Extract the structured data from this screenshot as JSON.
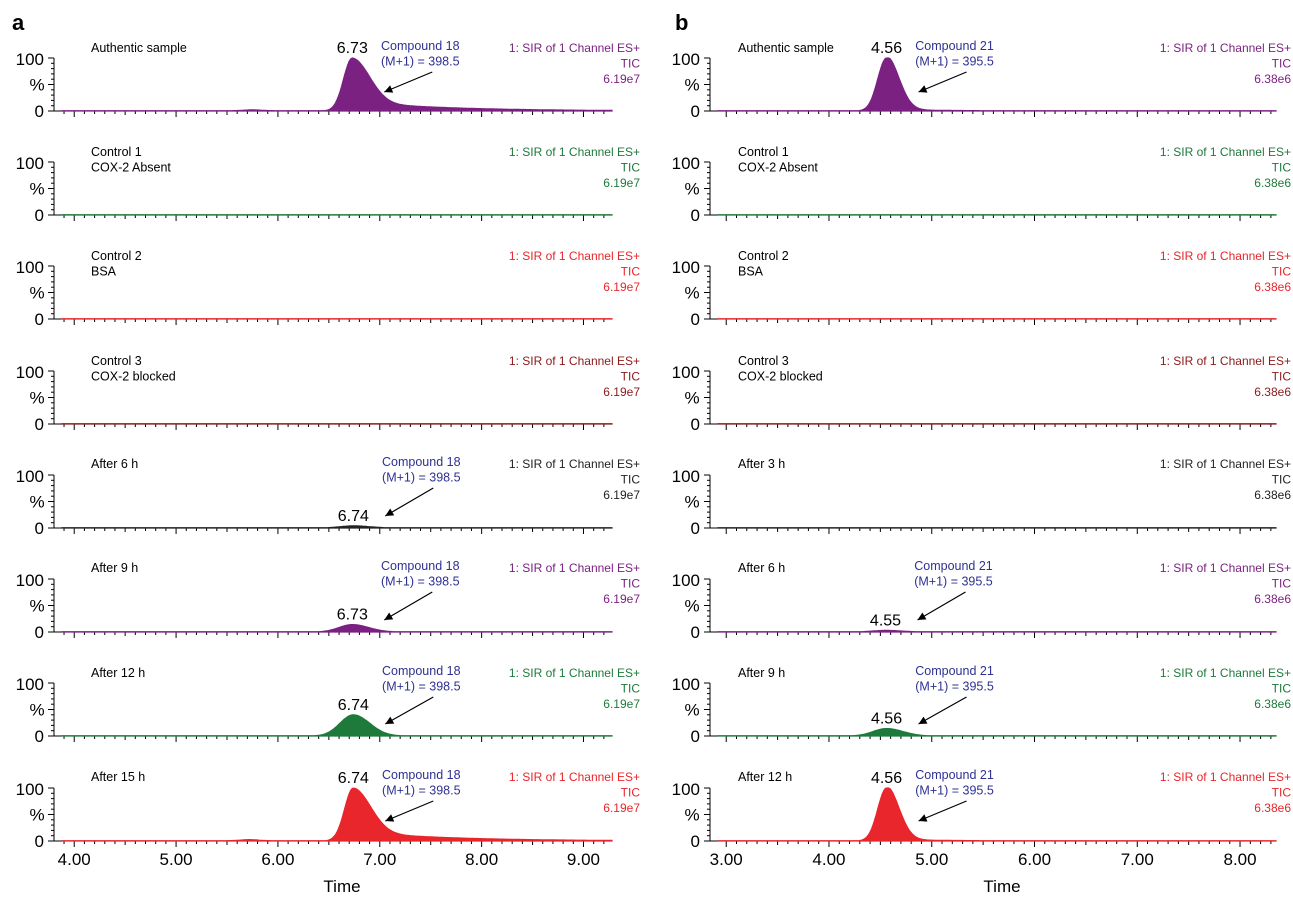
{
  "colors": {
    "purple": "#7b2182",
    "green": "#1e7a3a",
    "red": "#e8262b",
    "darkred": "#8b1a1a",
    "black": "#222222",
    "annot": "#2e3192"
  },
  "chart_data": [
    {
      "panel_label": "a",
      "type": "area",
      "xlabel": "Time",
      "xlim": [
        3.88,
        9.28
      ],
      "xticks": [
        "4.00",
        "5.00",
        "6.00",
        "7.00",
        "8.00",
        "9.00"
      ],
      "xtick_values": [
        4,
        5,
        6,
        7,
        8,
        9
      ],
      "ylabel": "%",
      "ylim": [
        0,
        100
      ],
      "yticks": [
        "0",
        "100"
      ],
      "traces": [
        {
          "label_lines": [
            "Authentic sample"
          ],
          "header": [
            "1: SIR of 1 Channel ES+",
            "TIC",
            "6.19e7"
          ],
          "color": "purple",
          "peak": {
            "rt": 6.73,
            "height": 100,
            "shape": "asym"
          },
          "rt_label": "6.73",
          "annotation": [
            "Compound 18",
            "(M+1) = 398.5"
          ],
          "minor_bump": {
            "rt": 5.75,
            "height": 1.5
          }
        },
        {
          "label_lines": [
            "Control 1",
            "COX-2 Absent"
          ],
          "header": [
            "1: SIR of 1 Channel ES+",
            "TIC",
            "6.19e7"
          ],
          "color": "green",
          "peak": null
        },
        {
          "label_lines": [
            "Control 2",
            "BSA"
          ],
          "header": [
            "1: SIR of 1 Channel ES+",
            "TIC",
            "6.19e7"
          ],
          "color": "red",
          "peak": null
        },
        {
          "label_lines": [
            "Control 3",
            "COX-2 blocked"
          ],
          "header": [
            "1: SIR of 1 Channel ES+",
            "TIC",
            "6.19e7"
          ],
          "color": "darkred",
          "peak": null
        },
        {
          "label_lines": [
            "After 6 h"
          ],
          "header": [
            "1: SIR of 1 Channel ES+",
            "TIC",
            "6.19e7"
          ],
          "color": "black",
          "peak": {
            "rt": 6.74,
            "height": 4,
            "shape": "sym"
          },
          "rt_label": "6.74",
          "annotation": [
            "Compound 18",
            "(M+1) = 398.5"
          ]
        },
        {
          "label_lines": [
            "After 9 h"
          ],
          "header": [
            "1: SIR of 1 Channel ES+",
            "TIC",
            "6.19e7"
          ],
          "color": "purple",
          "peak": {
            "rt": 6.73,
            "height": 14,
            "shape": "sym"
          },
          "rt_label": "6.73",
          "annotation": [
            "Compound 18",
            "(M+1) = 398.5"
          ]
        },
        {
          "label_lines": [
            "After 12 h"
          ],
          "header": [
            "1: SIR of 1 Channel ES+",
            "TIC",
            "6.19e7"
          ],
          "color": "green",
          "peak": {
            "rt": 6.74,
            "height": 40,
            "shape": "sym"
          },
          "rt_label": "6.74",
          "annotation": [
            "Compound 18",
            "(M+1) = 398.5"
          ]
        },
        {
          "label_lines": [
            "After 15 h"
          ],
          "header": [
            "1: SIR of 1 Channel ES+",
            "TIC",
            "6.19e7"
          ],
          "color": "red",
          "peak": {
            "rt": 6.74,
            "height": 100,
            "shape": "asym"
          },
          "rt_label": "6.74",
          "annotation": [
            "Compound 18",
            "(M+1) = 398.5"
          ],
          "minor_bump": {
            "rt": 5.72,
            "height": 2
          }
        }
      ]
    },
    {
      "panel_label": "b",
      "type": "area",
      "xlabel": "Time",
      "xlim": [
        2.92,
        8.35
      ],
      "xticks": [
        "3.00",
        "4.00",
        "5.00",
        "6.00",
        "7.00",
        "8.00"
      ],
      "xtick_values": [
        3,
        4,
        5,
        6,
        7,
        8
      ],
      "ylabel": "%",
      "ylim": [
        0,
        100
      ],
      "yticks": [
        "0",
        "100"
      ],
      "traces": [
        {
          "label_lines": [
            "Authentic sample"
          ],
          "header": [
            "1: SIR of 1 Channel ES+",
            "TIC",
            "6.38e6"
          ],
          "color": "purple",
          "peak": {
            "rt": 4.56,
            "height": 100,
            "shape": "sharp"
          },
          "rt_label": "4.56",
          "annotation": [
            "Compound 21",
            "(M+1) = 395.5"
          ]
        },
        {
          "label_lines": [
            "Control 1",
            "COX-2 Absent"
          ],
          "header": [
            "1: SIR of 1 Channel ES+",
            "TIC",
            "6.38e6"
          ],
          "color": "green",
          "peak": null
        },
        {
          "label_lines": [
            "Control 2",
            "BSA"
          ],
          "header": [
            "1: SIR of 1 Channel ES+",
            "TIC",
            "6.38e6"
          ],
          "color": "red",
          "peak": null
        },
        {
          "label_lines": [
            "Control 3",
            "COX-2 blocked"
          ],
          "header": [
            "1: SIR of 1 Channel ES+",
            "TIC",
            "6.38e6"
          ],
          "color": "darkred",
          "peak": null
        },
        {
          "label_lines": [
            "After 3 h"
          ],
          "header": [
            "1: SIR of 1 Channel ES+",
            "TIC",
            "6.38e6"
          ],
          "color": "black",
          "peak": null
        },
        {
          "label_lines": [
            "After 6 h"
          ],
          "header": [
            "1: SIR of 1 Channel ES+",
            "TIC",
            "6.38e6"
          ],
          "color": "purple",
          "peak": {
            "rt": 4.55,
            "height": 3,
            "shape": "sym"
          },
          "rt_label": "4.55",
          "annotation": [
            "Compound 21",
            "(M+1) = 395.5"
          ]
        },
        {
          "label_lines": [
            "After 9 h"
          ],
          "header": [
            "1: SIR of 1 Channel ES+",
            "TIC",
            "6.38e6"
          ],
          "color": "green",
          "peak": {
            "rt": 4.56,
            "height": 14,
            "shape": "sym"
          },
          "rt_label": "4.56",
          "annotation": [
            "Compound 21",
            "(M+1) = 395.5"
          ]
        },
        {
          "label_lines": [
            "After 12 h"
          ],
          "header": [
            "1: SIR of 1 Channel ES+",
            "TIC",
            "6.38e6"
          ],
          "color": "red",
          "peak": {
            "rt": 4.56,
            "height": 100,
            "shape": "sharp"
          },
          "rt_label": "4.56",
          "annotation": [
            "Compound 21",
            "(M+1) = 395.5"
          ]
        }
      ]
    }
  ]
}
